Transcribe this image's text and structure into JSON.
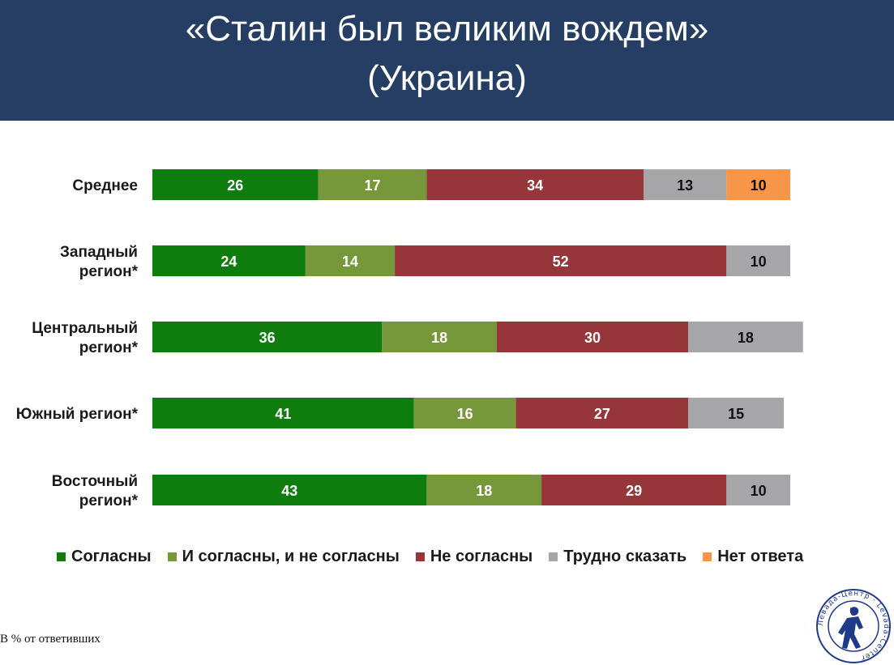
{
  "header": {
    "title_line1": "«Сталин был великим вождем»",
    "title_line2": "(Украина)"
  },
  "chart_data": {
    "type": "bar",
    "orientation": "horizontal",
    "stacked": true,
    "categories": [
      [
        "Среднее"
      ],
      [
        "Западный",
        "регион*"
      ],
      [
        "Центральный",
        "регион*"
      ],
      [
        "Южный регион*"
      ],
      [
        "Восточный",
        "регион*"
      ]
    ],
    "series": [
      {
        "name": "Согласны",
        "color": "#0e7d0e",
        "label_color": "#ffffff",
        "values": [
          26,
          24,
          36,
          41,
          43
        ]
      },
      {
        "name": "И согласны, и не согласны",
        "color": "#76973a",
        "label_color": "#ffffff",
        "values": [
          17,
          14,
          18,
          16,
          18
        ]
      },
      {
        "name": "Не согласны",
        "color": "#96363a",
        "label_color": "#ffffff",
        "values": [
          34,
          52,
          30,
          27,
          29
        ]
      },
      {
        "name": "Трудно сказать",
        "color": "#a6a6a8",
        "label_color": "#111111",
        "values": [
          13,
          10,
          18,
          15,
          10
        ]
      },
      {
        "name": "Нет ответа",
        "color": "#f79646",
        "label_color": "#111111",
        "values": [
          10,
          0,
          0,
          0,
          0
        ]
      }
    ],
    "xlim": [
      0,
      100
    ],
    "grid": false,
    "legend_position": "bottom",
    "footnote": "В % от ответивших"
  },
  "logo": {
    "text": "Левада-Центр · Levada-Center",
    "icon": "levada-center-logo-icon"
  }
}
